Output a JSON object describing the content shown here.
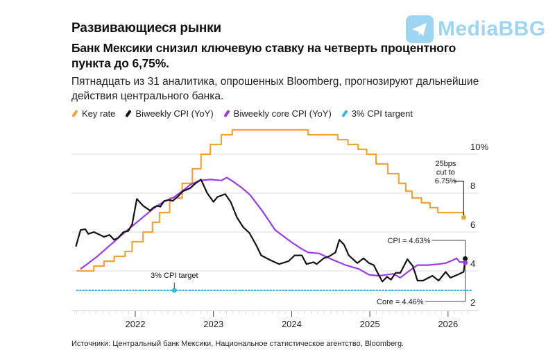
{
  "header": {
    "kicker": "Развивающиеся рынки",
    "headline": "Банк Мексики снизил ключевую ставку на четверть процентного пункта до 6,75%.",
    "subhead": "Пятнадцать из 31 аналитика, опрошенных Bloomberg, прогнозируют дальнейшие действия центрального банка."
  },
  "watermark": {
    "text": "MediaBBG",
    "icon": "telegram-plane-icon"
  },
  "source": "Источники: Центральный банк Мексики, Национальное статистическое агентство, Bloomberg.",
  "colors": {
    "key_rate": "#f0a33a",
    "cpi": "#111111",
    "core_cpi": "#9b3be6",
    "target": "#3bb6e0",
    "grid": "#dddddd"
  },
  "chart_data": {
    "type": "line",
    "title": "Банк Мексики снизил ключевую ставку на четверть процентного пункта до 6,75%.",
    "xlabel": "",
    "ylabel": "",
    "x_ticks": [
      "2022",
      "2023",
      "2024",
      "2025",
      "2026"
    ],
    "y_ticks": [
      "10%",
      "8",
      "6",
      "4",
      "2"
    ],
    "y_tick_values": [
      10,
      8,
      6,
      4,
      2
    ],
    "xlim": [
      2021.18,
      2026.4
    ],
    "ylim": [
      2,
      10
    ],
    "grid": true,
    "legend_position": "top-left",
    "legend": [
      "Key rate",
      "Biweekly CPI (YoY)",
      "Biweekly core CPI (YoY)",
      "3% CPI targent"
    ],
    "series": [
      {
        "name": "Key rate",
        "step": true,
        "points": [
          [
            2021.25,
            4.0
          ],
          [
            2021.47,
            4.25
          ],
          [
            2021.6,
            4.5
          ],
          [
            2021.73,
            4.75
          ],
          [
            2021.87,
            5.0
          ],
          [
            2021.96,
            5.5
          ],
          [
            2022.1,
            6.0
          ],
          [
            2022.22,
            6.5
          ],
          [
            2022.31,
            7.0
          ],
          [
            2022.44,
            7.75
          ],
          [
            2022.6,
            8.5
          ],
          [
            2022.73,
            9.25
          ],
          [
            2022.84,
            10.0
          ],
          [
            2022.96,
            10.5
          ],
          [
            2023.1,
            11.0
          ],
          [
            2023.24,
            11.25
          ],
          [
            2024.21,
            11.0
          ],
          [
            2024.59,
            10.75
          ],
          [
            2024.72,
            10.5
          ],
          [
            2024.85,
            10.25
          ],
          [
            2024.96,
            10.0
          ],
          [
            2025.08,
            9.5
          ],
          [
            2025.23,
            9.0
          ],
          [
            2025.37,
            8.5
          ],
          [
            2025.46,
            8.1
          ],
          [
            2025.54,
            7.75
          ],
          [
            2025.66,
            7.5
          ],
          [
            2025.77,
            7.25
          ],
          [
            2025.87,
            7.0
          ],
          [
            2026.2,
            7.0
          ],
          [
            2026.2,
            6.75
          ]
        ]
      },
      {
        "name": "Biweekly CPI (YoY)",
        "points": [
          [
            2021.24,
            5.25
          ],
          [
            2021.3,
            6.1
          ],
          [
            2021.36,
            6.15
          ],
          [
            2021.4,
            5.9
          ],
          [
            2021.47,
            6.0
          ],
          [
            2021.55,
            5.85
          ],
          [
            2021.6,
            5.75
          ],
          [
            2021.67,
            5.85
          ],
          [
            2021.73,
            5.6
          ],
          [
            2021.78,
            5.7
          ],
          [
            2021.85,
            6.0
          ],
          [
            2021.91,
            6.05
          ],
          [
            2021.96,
            6.4
          ],
          [
            2022.02,
            7.7
          ],
          [
            2022.1,
            7.35
          ],
          [
            2022.19,
            7.1
          ],
          [
            2022.23,
            7.25
          ],
          [
            2022.28,
            7.35
          ],
          [
            2022.32,
            7.3
          ],
          [
            2022.37,
            7.6
          ],
          [
            2022.43,
            7.65
          ],
          [
            2022.48,
            7.6
          ],
          [
            2022.55,
            7.85
          ],
          [
            2022.61,
            8.1
          ],
          [
            2022.7,
            8.25
          ],
          [
            2022.77,
            8.5
          ],
          [
            2022.84,
            8.7
          ],
          [
            2022.92,
            8.0
          ],
          [
            2023.0,
            7.55
          ],
          [
            2023.05,
            7.8
          ],
          [
            2023.15,
            7.95
          ],
          [
            2023.22,
            7.55
          ],
          [
            2023.3,
            6.75
          ],
          [
            2023.38,
            6.25
          ],
          [
            2023.46,
            5.95
          ],
          [
            2023.55,
            5.3
          ],
          [
            2023.61,
            4.8
          ],
          [
            2023.73,
            4.55
          ],
          [
            2023.84,
            4.35
          ],
          [
            2023.96,
            4.5
          ],
          [
            2024.04,
            4.8
          ],
          [
            2024.13,
            4.8
          ],
          [
            2024.19,
            4.35
          ],
          [
            2024.28,
            4.45
          ],
          [
            2024.32,
            4.35
          ],
          [
            2024.41,
            4.65
          ],
          [
            2024.48,
            4.75
          ],
          [
            2024.56,
            4.95
          ],
          [
            2024.61,
            5.6
          ],
          [
            2024.67,
            5.35
          ],
          [
            2024.73,
            4.8
          ],
          [
            2024.84,
            4.4
          ],
          [
            2024.92,
            4.65
          ],
          [
            2024.99,
            4.4
          ],
          [
            2025.05,
            4.3
          ],
          [
            2025.1,
            3.9
          ],
          [
            2025.16,
            3.45
          ],
          [
            2025.22,
            3.7
          ],
          [
            2025.27,
            3.55
          ],
          [
            2025.33,
            3.9
          ],
          [
            2025.39,
            3.9
          ],
          [
            2025.48,
            4.6
          ],
          [
            2025.55,
            4.25
          ],
          [
            2025.61,
            3.5
          ],
          [
            2025.68,
            3.5
          ],
          [
            2025.8,
            3.75
          ],
          [
            2025.88,
            3.5
          ],
          [
            2025.97,
            3.95
          ],
          [
            2026.03,
            3.65
          ],
          [
            2026.12,
            3.8
          ],
          [
            2026.2,
            3.95
          ],
          [
            2026.22,
            4.63
          ]
        ]
      },
      {
        "name": "Biweekly core CPI (YoY)",
        "points": [
          [
            2021.3,
            4.1
          ],
          [
            2021.5,
            4.7
          ],
          [
            2021.7,
            5.4
          ],
          [
            2021.87,
            6.0
          ],
          [
            2022.05,
            6.6
          ],
          [
            2022.23,
            7.2
          ],
          [
            2022.36,
            7.55
          ],
          [
            2022.48,
            7.75
          ],
          [
            2022.6,
            8.1
          ],
          [
            2022.71,
            8.45
          ],
          [
            2022.83,
            8.65
          ],
          [
            2022.96,
            8.7
          ],
          [
            2023.1,
            8.65
          ],
          [
            2023.17,
            8.8
          ],
          [
            2023.25,
            8.6
          ],
          [
            2023.37,
            8.25
          ],
          [
            2023.47,
            7.9
          ],
          [
            2023.63,
            7.05
          ],
          [
            2023.79,
            6.1
          ],
          [
            2023.99,
            5.5
          ],
          [
            2024.12,
            5.15
          ],
          [
            2024.21,
            4.95
          ],
          [
            2024.35,
            4.9
          ],
          [
            2024.51,
            4.6
          ],
          [
            2024.69,
            4.3
          ],
          [
            2024.86,
            4.1
          ],
          [
            2024.99,
            3.8
          ],
          [
            2025.12,
            3.75
          ],
          [
            2025.3,
            3.85
          ],
          [
            2025.39,
            3.65
          ],
          [
            2025.52,
            4.05
          ],
          [
            2025.61,
            4.3
          ],
          [
            2025.74,
            4.3
          ],
          [
            2025.88,
            4.35
          ],
          [
            2025.97,
            4.4
          ],
          [
            2026.06,
            4.55
          ],
          [
            2026.11,
            4.65
          ],
          [
            2026.15,
            4.45
          ],
          [
            2026.22,
            4.46
          ]
        ]
      },
      {
        "name": "3% CPI targent",
        "dotted": true,
        "points": [
          [
            2021.25,
            3.0
          ],
          [
            2026.3,
            3.0
          ]
        ]
      }
    ],
    "annotations": [
      {
        "text_lines": [
          "25bps",
          "cut to",
          "6.75%"
        ],
        "target_series": "Key rate",
        "x": 2026.2,
        "y": 6.75
      },
      {
        "text": "CPI = 4.63%",
        "target_series": "Biweekly CPI (YoY)",
        "x": 2026.22,
        "y": 4.63
      },
      {
        "text": "Core = 4.46%",
        "target_series": "Biweekly core CPI (YoY)",
        "x": 2026.22,
        "y": 4.46
      },
      {
        "text": "3% CPI target",
        "target_series": "3% CPI targent",
        "x": 2022.5,
        "y": 3.0
      }
    ]
  }
}
